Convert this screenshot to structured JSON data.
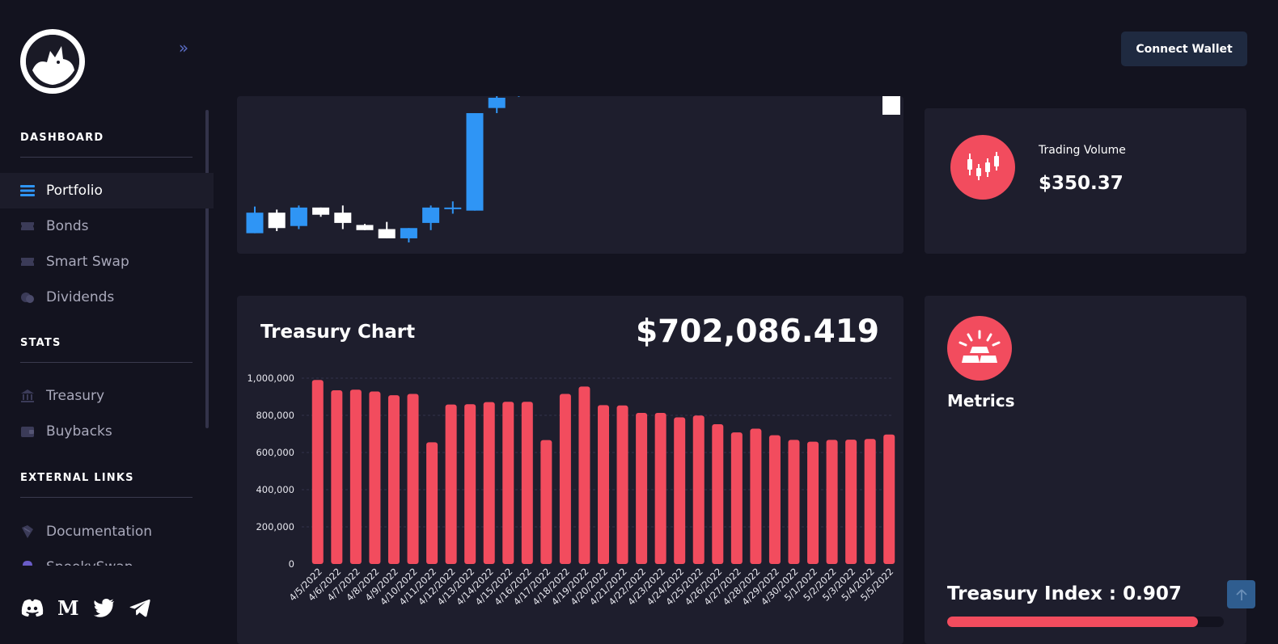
{
  "header": {
    "connect_label": "Connect Wallet"
  },
  "sidebar": {
    "sections": [
      {
        "title": "DASHBOARD",
        "items": [
          {
            "label": "Portfolio",
            "icon": "list-icon",
            "active": true
          },
          {
            "label": "Bonds",
            "icon": "ticket-icon"
          },
          {
            "label": "Smart Swap",
            "icon": "swap-icon"
          },
          {
            "label": "Dividends",
            "icon": "coins-icon"
          }
        ]
      },
      {
        "title": "STATS",
        "items": [
          {
            "label": "Treasury",
            "icon": "bank-icon"
          },
          {
            "label": "Buybacks",
            "icon": "wallet-icon"
          }
        ]
      },
      {
        "title": "EXTERNAL LINKS",
        "items": [
          {
            "label": "Documentation",
            "icon": "book-icon"
          },
          {
            "label": "SpookySwap",
            "icon": "ghost-icon"
          }
        ]
      }
    ],
    "socials": [
      "discord-icon",
      "medium-icon",
      "twitter-icon",
      "telegram-icon"
    ]
  },
  "trading_volume": {
    "label": "Trading Volume",
    "value": "$350.37"
  },
  "treasury": {
    "title": "Treasury Chart",
    "value": "$702,086.419"
  },
  "metrics": {
    "title": "Metrics",
    "index_label": "Treasury Index : 0.907",
    "index_fraction": 0.907
  },
  "colors": {
    "accent": "#f24c5e",
    "candle_up": "#2f95f5",
    "candle_down": "#ffffff",
    "background": "#13131f",
    "card": "#1e1e2d"
  },
  "candles": [
    {
      "o": 0.2,
      "c": 0.4,
      "h": 0.46,
      "l": 0.2
    },
    {
      "o": 0.4,
      "c": 0.25,
      "h": 0.43,
      "l": 0.22
    },
    {
      "o": 0.27,
      "c": 0.45,
      "h": 0.47,
      "l": 0.24
    },
    {
      "o": 0.45,
      "c": 0.38,
      "h": 0.45,
      "l": 0.36
    },
    {
      "o": 0.4,
      "c": 0.3,
      "h": 0.47,
      "l": 0.24
    },
    {
      "o": 0.28,
      "c": 0.23,
      "h": 0.29,
      "l": 0.23
    },
    {
      "o": 0.24,
      "c": 0.15,
      "h": 0.31,
      "l": 0.15
    },
    {
      "o": 0.15,
      "c": 0.25,
      "h": 0.25,
      "l": 0.11
    },
    {
      "o": 0.3,
      "c": 0.45,
      "h": 0.47,
      "l": 0.23
    },
    {
      "o": 0.45,
      "c": 0.45,
      "h": 0.51,
      "l": 0.39
    },
    {
      "o": 0.42,
      "c": 1.37,
      "h": 1.37,
      "l": 0.42
    },
    {
      "o": 1.42,
      "c": 1.52,
      "h": 1.57,
      "l": 1.37
    },
    {
      "o": 1.55,
      "c": 1.6,
      "h": 1.62,
      "l": 1.53
    }
  ],
  "chart_data": {
    "type": "bar",
    "title": "",
    "xlabel": "",
    "ylabel": "",
    "ylim": [
      0,
      1000000
    ],
    "yticks": [
      "0",
      "200,000",
      "400,000",
      "600,000",
      "800,000",
      "1,000,000"
    ],
    "categories": [
      "4/5/2022",
      "4/6/2022",
      "4/7/2022",
      "4/8/2022",
      "4/9/2022",
      "4/10/2022",
      "4/11/2022",
      "4/12/2022",
      "4/13/2022",
      "4/14/2022",
      "4/15/2022",
      "4/16/2022",
      "4/17/2022",
      "4/18/2022",
      "4/19/2022",
      "4/20/2022",
      "4/21/2022",
      "4/22/2022",
      "4/23/2022",
      "4/24/2022",
      "4/25/2022",
      "4/26/2022",
      "4/27/2022",
      "4/28/2022",
      "4/29/2022",
      "4/30/2022",
      "5/1/2022",
      "5/2/2022",
      "5/3/2022",
      "5/4/2022",
      "5/5/2022"
    ],
    "values": [
      990000,
      935000,
      938000,
      928000,
      908000,
      915000,
      655000,
      858000,
      860000,
      871000,
      873000,
      873000,
      667000,
      915000,
      955000,
      855000,
      853000,
      813000,
      813000,
      789000,
      799000,
      752000,
      708000,
      728000,
      693000,
      668000,
      658000,
      668000,
      669000,
      673000,
      697000
    ],
    "color": "#f24c5e",
    "grid": true
  }
}
